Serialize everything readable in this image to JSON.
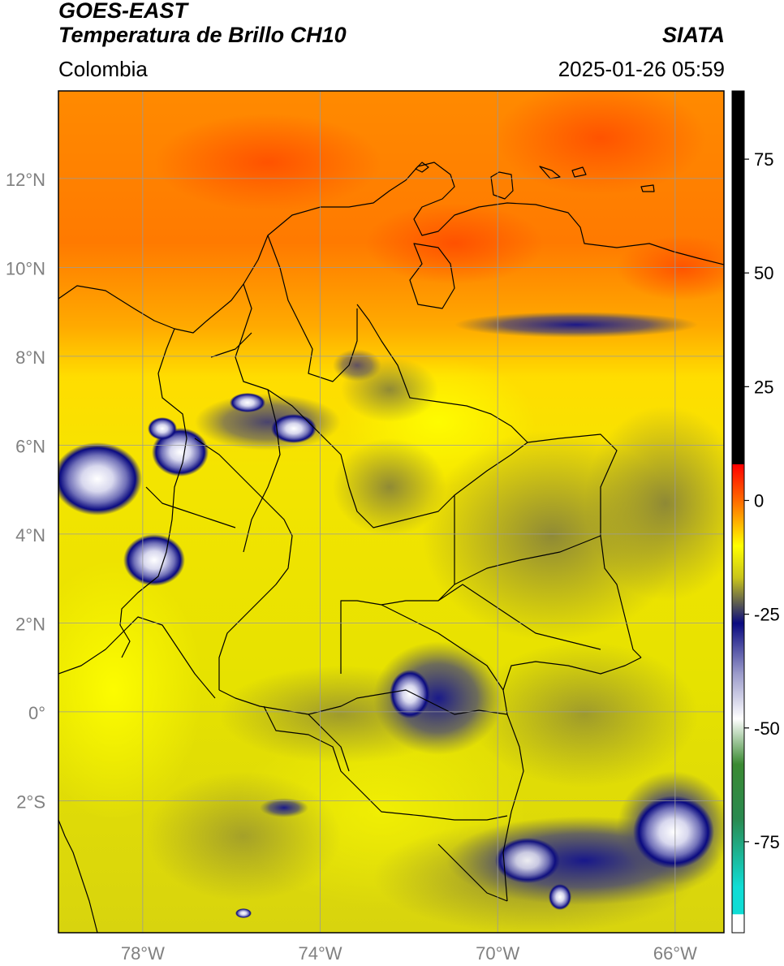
{
  "header": {
    "satellite": "GOES-EAST",
    "product": "Temperatura de Brillo CH10",
    "region": "Colombia",
    "agency": "SIATA",
    "datetime": "2025-01-26 05:59"
  },
  "axes": {
    "lat_labels": [
      "12°N",
      "10°N",
      "8°N",
      "6°N",
      "4°N",
      "2°N",
      "0°",
      "2°S"
    ],
    "lon_labels": [
      "78°W",
      "74°W",
      "70°W",
      "66°W"
    ]
  },
  "colorbar": {
    "tick_labels": [
      "75",
      "50",
      "25",
      "0",
      "-25",
      "-50",
      "-75"
    ],
    "ticks": [
      75,
      50,
      25,
      0,
      -25,
      -50,
      -75
    ],
    "range": [
      -95,
      90
    ],
    "stops": [
      {
        "v": 90,
        "color": "#000000"
      },
      {
        "v": 8,
        "color": "#000000"
      },
      {
        "v": 7.9,
        "color": "#ff0000"
      },
      {
        "v": 0,
        "color": "#ff6a00"
      },
      {
        "v": -10,
        "color": "#ffff00"
      },
      {
        "v": -17,
        "color": "#c9c51a"
      },
      {
        "v": -23,
        "color": "#555555"
      },
      {
        "v": -27,
        "color": "#0a0a80"
      },
      {
        "v": -38,
        "color": "#9a9aca"
      },
      {
        "v": -48,
        "color": "#ffffff"
      },
      {
        "v": -58,
        "color": "#3a8a32"
      },
      {
        "v": -70,
        "color": "#2a8a50"
      },
      {
        "v": -85,
        "color": "#10ddd5"
      },
      {
        "v": -90.9,
        "color": "#10ddd5"
      },
      {
        "v": -91,
        "color": "#ffffff"
      },
      {
        "v": -95,
        "color": "#ffffff"
      }
    ]
  },
  "colors": {
    "sea_warm": "#ff6a00",
    "land_warm": "#ffcc00",
    "cloud_mid": "#c9c51a",
    "cloud_cold": "#0a0a80",
    "cloud_coldest": "#ffffff",
    "gridline": "#9a9a9a",
    "tick_label": "#808080"
  }
}
